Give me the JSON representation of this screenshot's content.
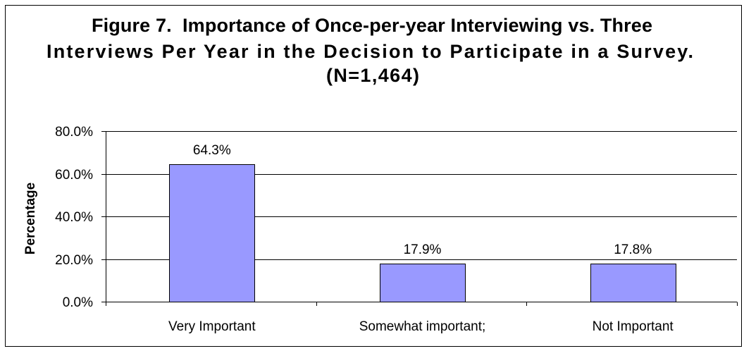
{
  "chart_data": {
    "type": "bar",
    "title": [
      "Figure 7.  Importance of Once-per-year Interviewing vs. Three",
      "Interviews Per Year in the Decision to Participate in a Survey.",
      "(N=1,464)"
    ],
    "xlabel": "",
    "ylabel": "Percentage",
    "categories": [
      "Very Important",
      "Somewhat important;",
      "Not Important"
    ],
    "values": [
      64.3,
      17.9,
      17.8
    ],
    "data_labels": [
      "64.3%",
      "17.9%",
      "17.8%"
    ],
    "ylim": [
      0,
      80
    ],
    "yticks": [
      0,
      20,
      40,
      60,
      80
    ],
    "ytick_labels": [
      "0.0%",
      "20.0%",
      "40.0%",
      "60.0%",
      "80.0%"
    ],
    "grid": true,
    "legend": false,
    "colors": {
      "bar_fill": "#9999FF",
      "bar_outline": "#000000",
      "background": "#FFFFFF"
    }
  }
}
